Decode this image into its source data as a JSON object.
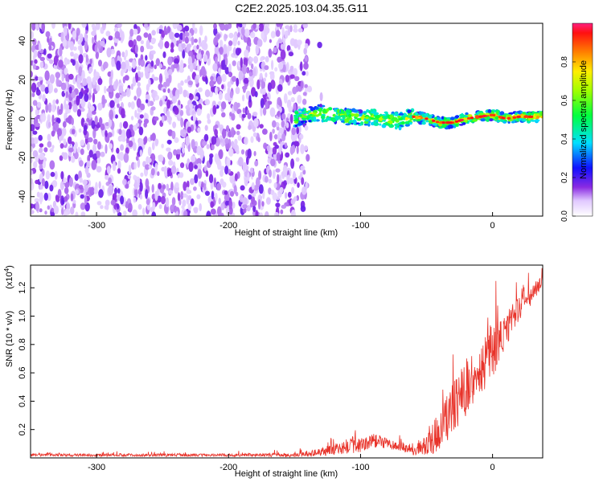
{
  "title": "C2E2.2025.103.04.35.G11",
  "chart_data": [
    {
      "type": "heatmap",
      "xlabel": "Height of straight line (km)",
      "ylabel": "Frequency (Hz)",
      "xlim": [
        -350,
        38
      ],
      "ylim": [
        -50,
        49
      ],
      "xticks": [
        -300,
        -200,
        -100,
        0
      ],
      "yticks": [
        -40,
        -20,
        0,
        20,
        40
      ],
      "noise_region_x": [
        -350,
        -140
      ],
      "signal_trace": {
        "x": [
          -150,
          -140,
          -130,
          -120,
          -110,
          -100,
          -90,
          -80,
          -70,
          -60,
          -50,
          -40,
          -30,
          -20,
          -10,
          0,
          10,
          20,
          30,
          38
        ],
        "y": [
          0,
          2,
          3,
          2,
          1,
          0,
          1,
          0,
          -1,
          1,
          0,
          -2,
          -2,
          0,
          1,
          2,
          0,
          1,
          1,
          1
        ]
      },
      "colorbar": {
        "label": "Normalized spectral amplitude",
        "range": [
          0,
          1
        ],
        "ticks": [
          0.0,
          0.2,
          0.4,
          0.6,
          0.8
        ]
      }
    },
    {
      "type": "line",
      "xlabel": "Height of straight line (km)",
      "ylabel": "SNR (10 * v/v)",
      "yscale_label": "(x10",
      "yscale_exp": "4",
      "yscale_close": ")",
      "xlim": [
        -350,
        38
      ],
      "ylim": [
        0,
        1.36
      ],
      "xticks": [
        -300,
        -200,
        -100,
        0
      ],
      "yticks": [
        0.2,
        0.4,
        0.6,
        0.8,
        1.0,
        1.2
      ],
      "color": "#e8332a",
      "envelope": {
        "x": [
          -350,
          -300,
          -200,
          -150,
          -130,
          -120,
          -110,
          -100,
          -90,
          -80,
          -70,
          -60,
          -50,
          -40,
          -30,
          -20,
          -10,
          0,
          10,
          20,
          38
        ],
        "base": [
          0.02,
          0.02,
          0.02,
          0.02,
          0.04,
          0.06,
          0.08,
          0.1,
          0.12,
          0.1,
          0.08,
          0.05,
          0.08,
          0.2,
          0.35,
          0.5,
          0.6,
          0.75,
          0.9,
          1.05,
          1.25
        ],
        "amp": [
          0.02,
          0.02,
          0.02,
          0.03,
          0.06,
          0.08,
          0.12,
          0.14,
          0.1,
          0.08,
          0.06,
          0.06,
          0.15,
          0.3,
          0.35,
          0.4,
          0.35,
          0.4,
          0.25,
          0.2,
          0.1
        ]
      }
    }
  ]
}
